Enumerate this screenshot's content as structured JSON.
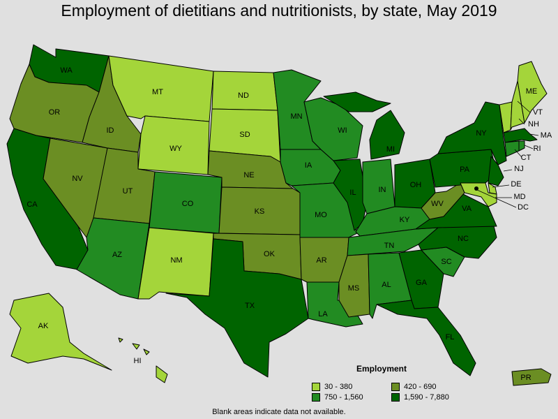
{
  "title": "Employment of dietitians and nutritionists, by state, May 2019",
  "legend": {
    "title": "Employment",
    "items": [
      {
        "label": "30 - 380",
        "color": "#a4d53a"
      },
      {
        "label": "420 - 690",
        "color": "#6b8e23"
      },
      {
        "label": "750 - 1,560",
        "color": "#228b22"
      },
      {
        "label": "1,590 - 7,880",
        "color": "#006400"
      }
    ]
  },
  "note": "Blank areas indicate data not available.",
  "states": {
    "WA": "WA",
    "OR": "OR",
    "CA": "CA",
    "NV": "NV",
    "ID": "ID",
    "MT": "MT",
    "WY": "WY",
    "UT": "UT",
    "AZ": "AZ",
    "CO": "CO",
    "NM": "NM",
    "ND": "ND",
    "SD": "SD",
    "NE": "NE",
    "KS": "KS",
    "OK": "OK",
    "TX": "TX",
    "MN": "MN",
    "IA": "IA",
    "MO": "MO",
    "AR": "AR",
    "LA": "LA",
    "WI": "WI",
    "IL": "IL",
    "MI": "MI",
    "IN": "IN",
    "OH": "OH",
    "KY": "KY",
    "TN": "TN",
    "MS": "MS",
    "AL": "AL",
    "GA": "GA",
    "FL": "FL",
    "SC": "SC",
    "NC": "NC",
    "VA": "VA",
    "WV": "WV",
    "PA": "PA",
    "NY": "NY",
    "ME": "ME",
    "VT": "VT",
    "NH": "NH",
    "MA": "MA",
    "RI": "RI",
    "CT": "CT",
    "NJ": "NJ",
    "DE": "DE",
    "MD": "MD",
    "DC": "DC",
    "AK": "AK",
    "HI": "HI",
    "PR": "PR"
  }
}
